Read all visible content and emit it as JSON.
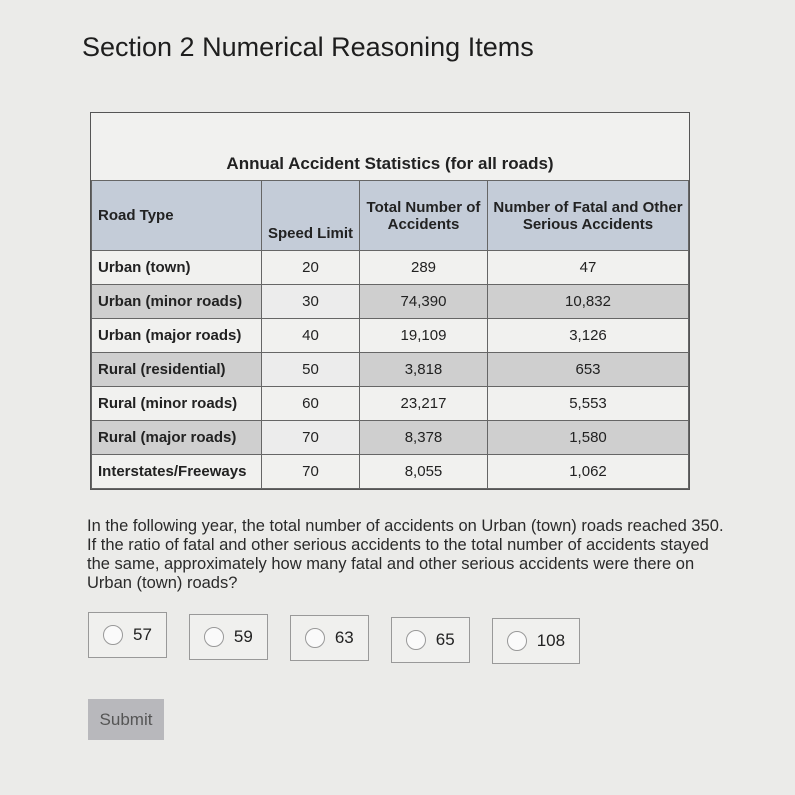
{
  "page": {
    "title": "Section 2 Numerical Reasoning Items"
  },
  "table": {
    "caption": "Annual Accident Statistics (for all roads)",
    "headers": [
      "Road Type",
      "Speed Limit",
      "Total Number of Accidents",
      "Number of Fatal and Other Serious Accidents"
    ],
    "rows": [
      [
        "Urban (town)",
        "20",
        "289",
        "47"
      ],
      [
        "Urban (minor roads)",
        "30",
        "74,390",
        "10,832"
      ],
      [
        "Urban (major roads)",
        "40",
        "19,109",
        "3,126"
      ],
      [
        "Rural (residential)",
        "50",
        "3,818",
        "653"
      ],
      [
        "Rural (minor roads)",
        "60",
        "23,217",
        "5,553"
      ],
      [
        "Rural (major roads)",
        "70",
        "8,378",
        "1,580"
      ],
      [
        "Interstates/Freeways",
        "70",
        "8,055",
        "1,062"
      ]
    ]
  },
  "question": "In the following year, the total number of accidents on Urban (town) roads reached 350. If the ratio of fatal and other serious accidents to the total number of accidents stayed the same, approximately how many fatal and other serious accidents were there on Urban (town) roads?",
  "options": [
    "57",
    "59",
    "63",
    "65",
    "108"
  ],
  "submit_label": "Submit",
  "colors": {
    "header_bg": "#c4ccd8",
    "alt_row_bg": "#cfcfcf",
    "submit_bg": "#b8b8bc"
  }
}
